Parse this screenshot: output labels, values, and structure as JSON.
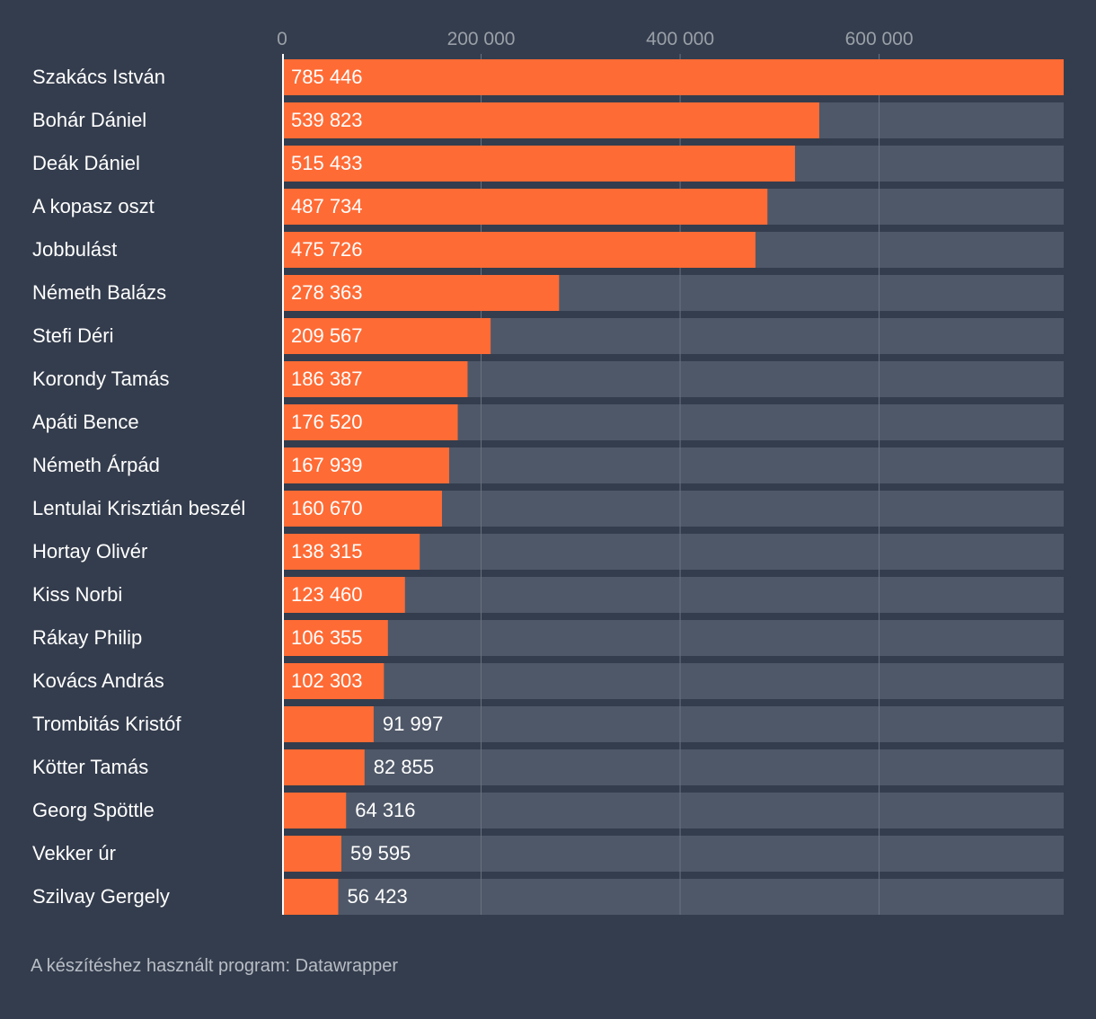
{
  "colors": {
    "background": "#343d4d",
    "bar": "#ff6b35",
    "track": "#4f5868",
    "grid": "#6a7382",
    "baseline": "#ffffff"
  },
  "footer": {
    "source": "A készítéshez használt program: Datawrapper"
  },
  "chart_data": {
    "type": "bar",
    "orientation": "horizontal",
    "title": "",
    "xlabel": "",
    "ylabel": "",
    "xlim": [
      0,
      785446
    ],
    "grid": true,
    "ticks": [
      {
        "value": 0,
        "label": "0"
      },
      {
        "value": 200000,
        "label": "200 000"
      },
      {
        "value": 400000,
        "label": "400 000"
      },
      {
        "value": 600000,
        "label": "600 000"
      }
    ],
    "categories": [
      "Szakács István",
      "Bohár Dániel",
      "Deák Dániel",
      "A kopasz oszt",
      "Jobbulást",
      "Németh Balázs",
      "Stefi Déri",
      "Korondy Tamás",
      "Apáti Bence",
      "Németh Árpád",
      "Lentulai Krisztián beszél",
      "Hortay Olivér",
      "Kiss Norbi",
      "Rákay Philip",
      "Kovács András",
      "Trombitás Kristóf",
      "Kötter Tamás",
      "Georg Spöttle",
      "Vekker úr",
      "Szilvay Gergely"
    ],
    "values": [
      785446,
      539823,
      515433,
      487734,
      475726,
      278363,
      209567,
      186387,
      176520,
      167939,
      160670,
      138315,
      123460,
      106355,
      102303,
      91997,
      82855,
      64316,
      59595,
      56423
    ],
    "value_labels": [
      "785 446",
      "539 823",
      "515 433",
      "487 734",
      "475 726",
      "278 363",
      "209 567",
      "186 387",
      "176 520",
      "167 939",
      "160 670",
      "138 315",
      "123 460",
      "106 355",
      "102 303",
      "91 997",
      "82 855",
      "64 316",
      "59 595",
      "56 423"
    ]
  }
}
